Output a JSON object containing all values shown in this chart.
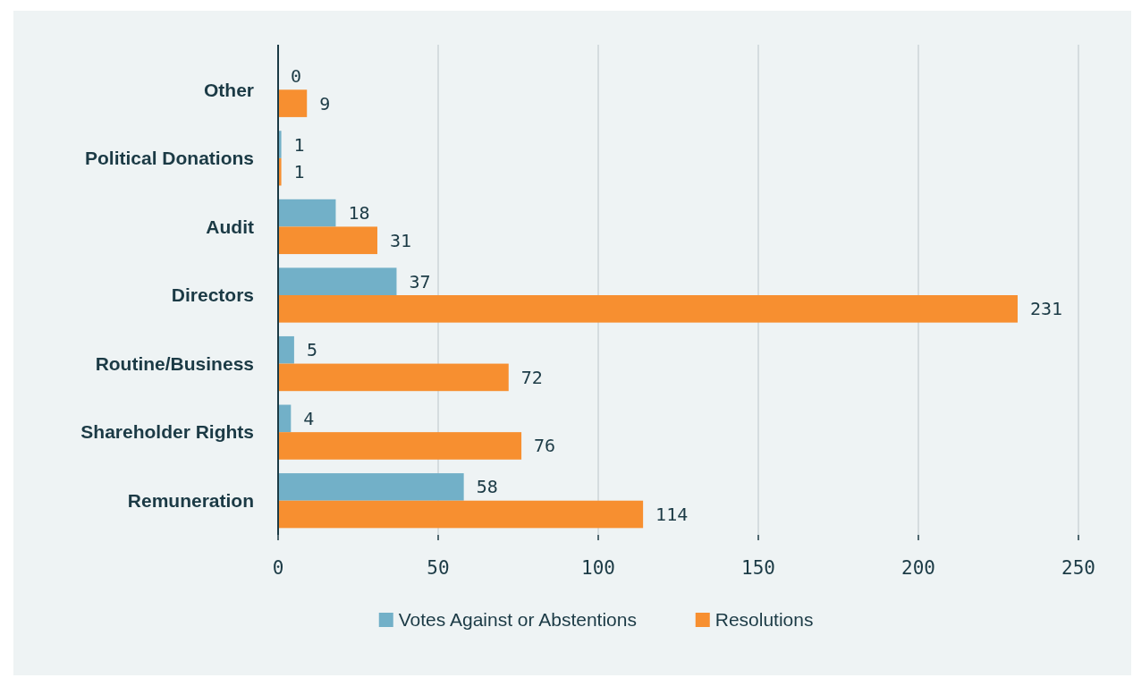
{
  "chart_data": {
    "type": "bar",
    "orientation": "horizontal",
    "categories": [
      "Other",
      "Political Donations",
      "Audit",
      "Directors",
      "Routine/Business",
      "Shareholder Rights",
      "Remuneration"
    ],
    "series": [
      {
        "name": "Votes Against or Abstentions",
        "color": "#72b0c8",
        "values": [
          0,
          1,
          18,
          37,
          5,
          4,
          58
        ]
      },
      {
        "name": "Resolutions",
        "color": "#f78f30",
        "values": [
          9,
          1,
          31,
          231,
          72,
          76,
          114
        ]
      }
    ],
    "xlim": [
      0,
      250
    ],
    "xticks": [
      0,
      50,
      100,
      150,
      200,
      250
    ],
    "grid": "x",
    "data_labels": true,
    "legend": "bottom"
  }
}
